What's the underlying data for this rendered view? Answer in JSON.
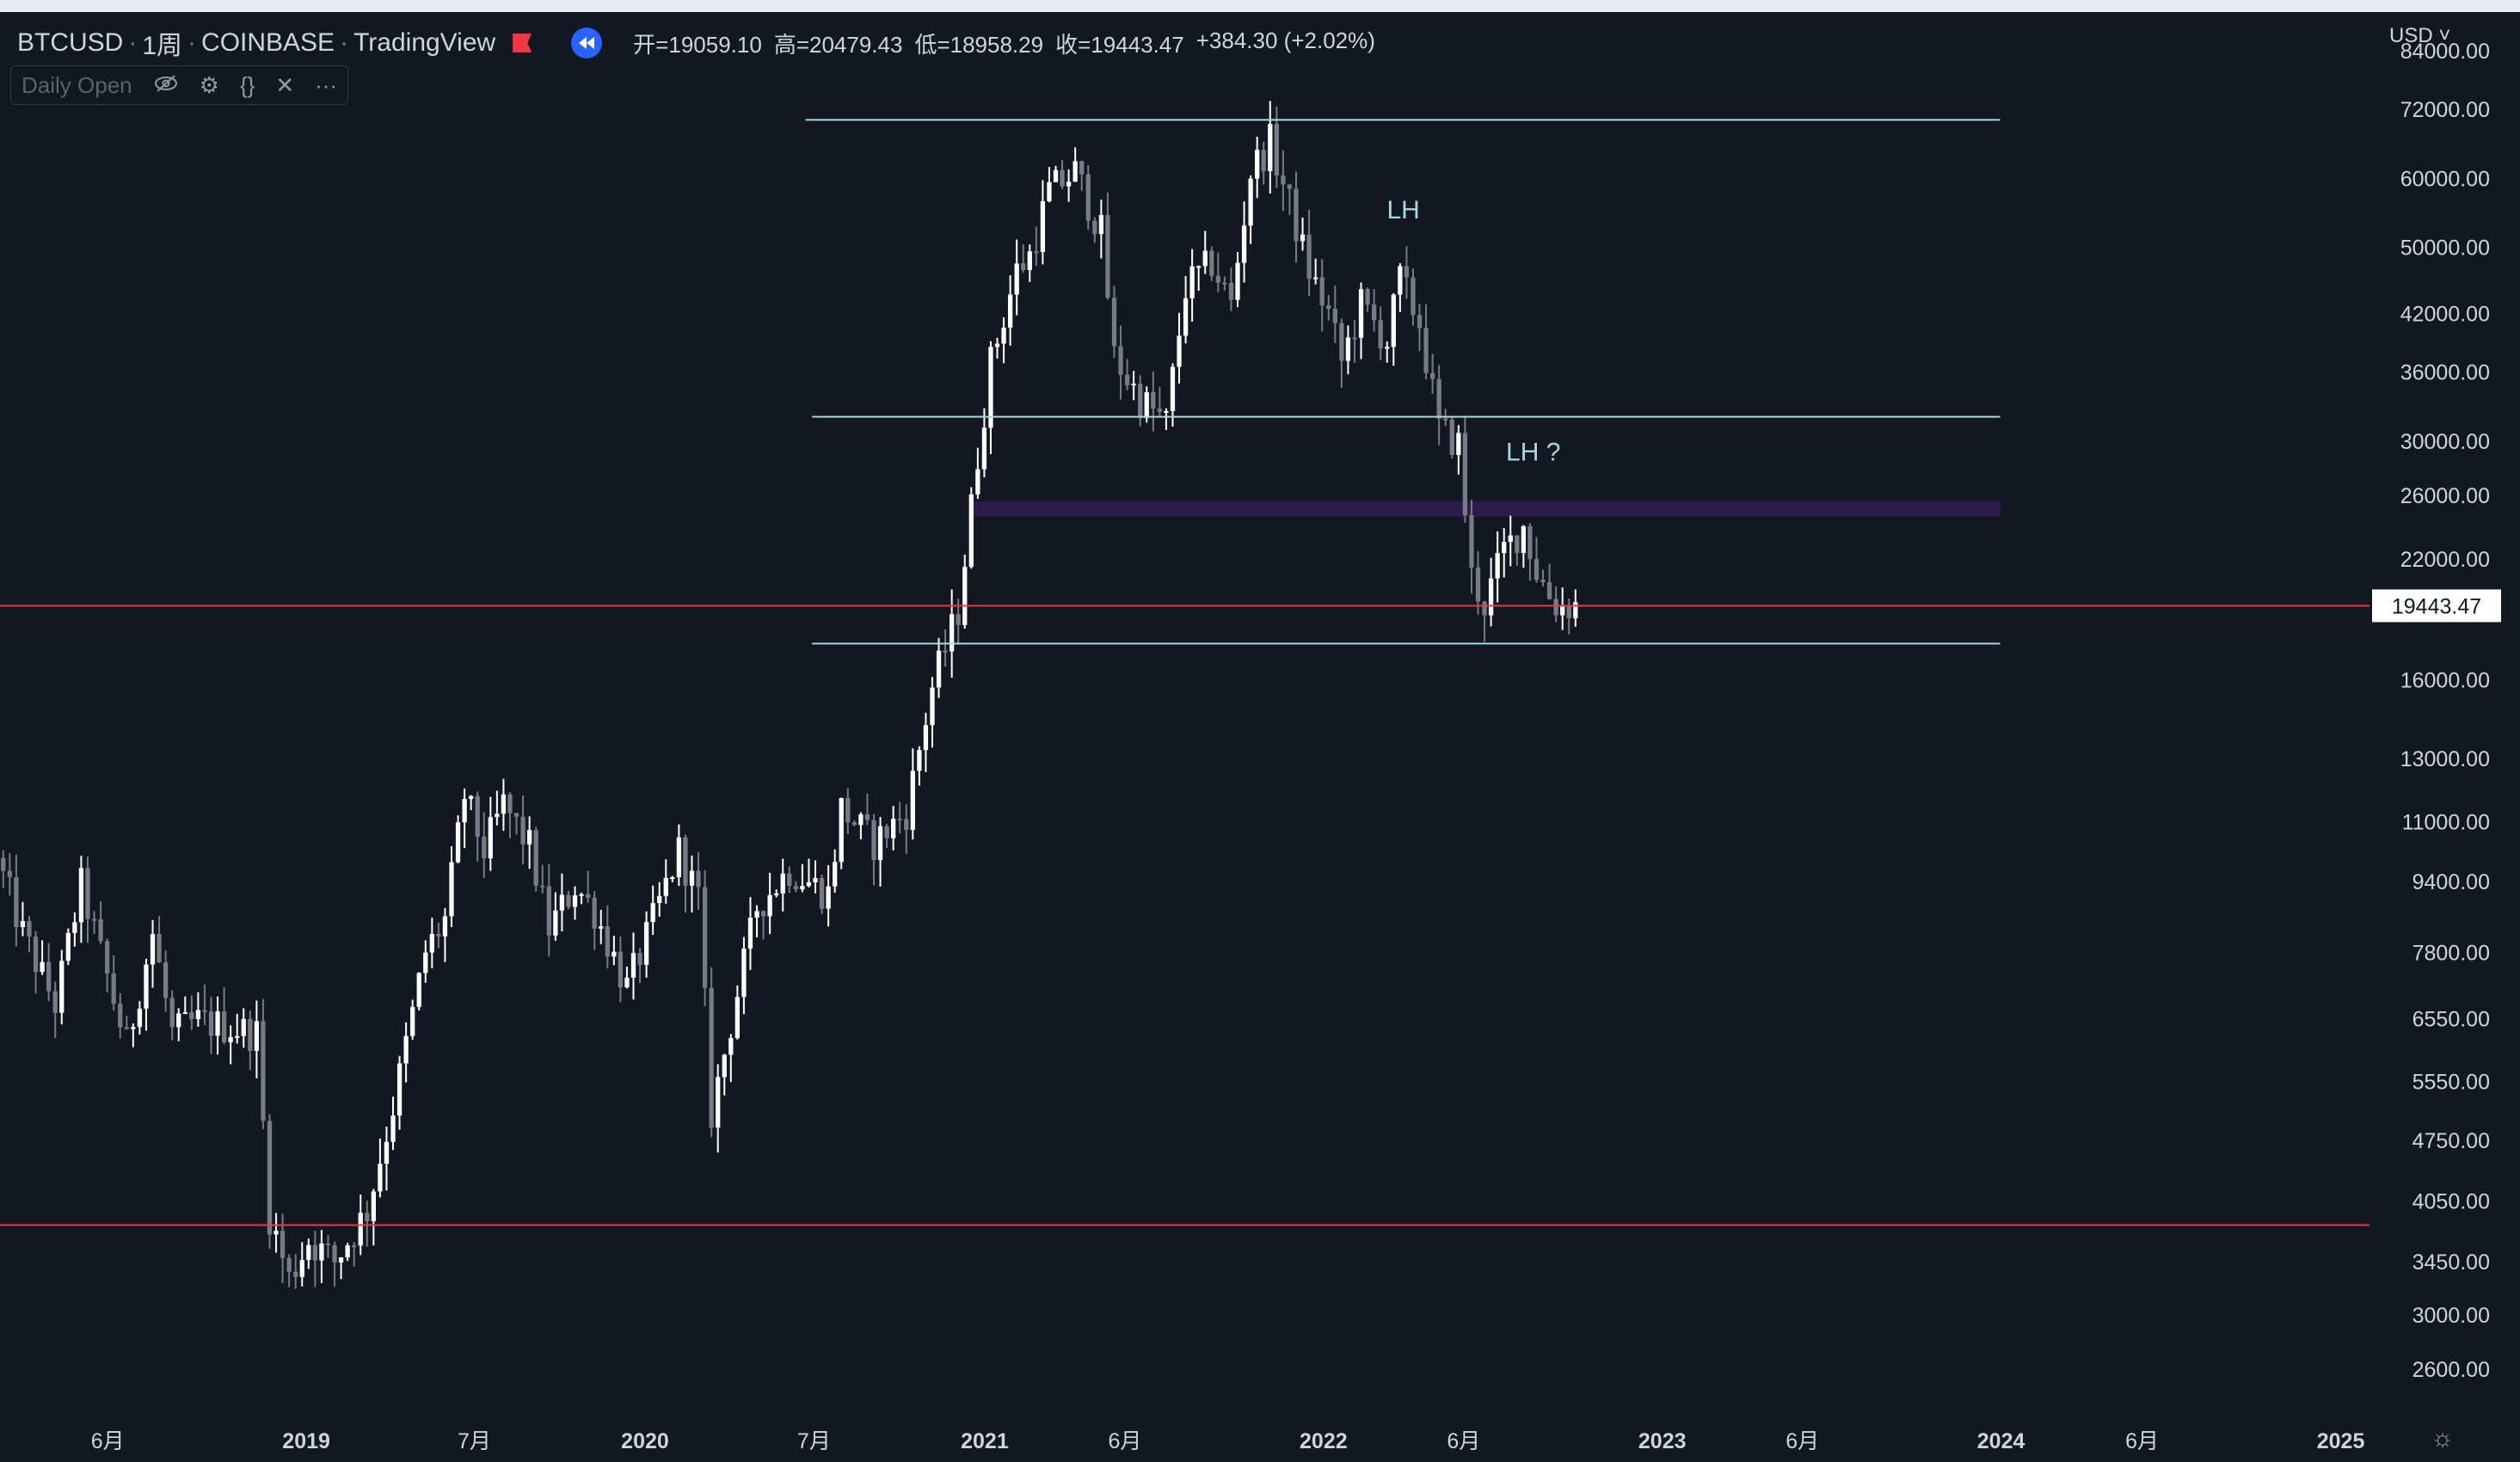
{
  "header": {
    "symbol": "BTCUSD",
    "interval": "1周",
    "exchange": "COINBASE",
    "source": "TradingView",
    "ohlc": {
      "open": "开=19059.10",
      "high": "高=20479.43",
      "low": "低=18958.29",
      "close": "收=19443.47",
      "change": "+384.30 (+2.02%)"
    }
  },
  "indicator": {
    "label": "Daily Open"
  },
  "price_axis": {
    "currency": "USD"
  },
  "colors": {
    "background": "#131722",
    "candle_up": "#ffffff",
    "candle_down": "#787b86",
    "level_line": "#a8d8e0",
    "red_line": "#f23645",
    "zone": "#2d1b4e"
  },
  "chart_data": {
    "type": "candlestick",
    "scale": "log",
    "ylim": [
      2300,
      93000
    ],
    "xlim": [
      "2018-02-05",
      "2025-02-01"
    ],
    "y_ticks": [
      84000,
      72000,
      60000,
      50000,
      42000,
      36000,
      30000,
      26000,
      22000,
      16000,
      13000,
      11000,
      9400,
      7800,
      6550,
      5550,
      4750,
      4050,
      3450,
      3000,
      2600
    ],
    "y_tick_labels": [
      "84000.00",
      "72000.00",
      "60000.00",
      "50000.00",
      "42000.00",
      "36000.00",
      "30000.00",
      "26000.00",
      "22000.00",
      "16000.00",
      "13000.00",
      "11000.00",
      "9400.00",
      "7800.00",
      "6550.00",
      "5550.00",
      "4750.00",
      "4050.00",
      "3450.00",
      "3000.00",
      "2600.00"
    ],
    "x_ticks": [
      {
        "date": "2018-06-01",
        "label": "6月",
        "bold": false
      },
      {
        "date": "2019-01-01",
        "label": "2019",
        "bold": true
      },
      {
        "date": "2019-07-01",
        "label": "7月",
        "bold": false
      },
      {
        "date": "2020-01-01",
        "label": "2020",
        "bold": true
      },
      {
        "date": "2020-07-01",
        "label": "7月",
        "bold": false
      },
      {
        "date": "2021-01-01",
        "label": "2021",
        "bold": true
      },
      {
        "date": "2021-06-01",
        "label": "6月",
        "bold": false
      },
      {
        "date": "2022-01-01",
        "label": "2022",
        "bold": true
      },
      {
        "date": "2022-06-01",
        "label": "6月",
        "bold": false
      },
      {
        "date": "2023-01-01",
        "label": "2023",
        "bold": true
      },
      {
        "date": "2023-06-01",
        "label": "6月",
        "bold": false
      },
      {
        "date": "2024-01-01",
        "label": "2024",
        "bold": true
      },
      {
        "date": "2024-06-01",
        "label": "6月",
        "bold": false
      },
      {
        "date": "2025-01-01",
        "label": "2025",
        "bold": true
      }
    ],
    "price_path": [
      [
        "2018-02-05",
        10000
      ],
      [
        "2018-03-05",
        8200
      ],
      [
        "2018-04-09",
        6800
      ],
      [
        "2018-05-07",
        9300
      ],
      [
        "2018-06-25",
        6100
      ],
      [
        "2018-07-23",
        8200
      ],
      [
        "2018-08-13",
        6300
      ],
      [
        "2018-09-10",
        6500
      ],
      [
        "2018-10-15",
        6400
      ],
      [
        "2018-11-12",
        6300
      ],
      [
        "2018-11-26",
        3900
      ],
      [
        "2018-12-17",
        3300
      ],
      [
        "2019-01-07",
        3650
      ],
      [
        "2019-02-04",
        3450
      ],
      [
        "2019-03-11",
        3950
      ],
      [
        "2019-04-08",
        5200
      ],
      [
        "2019-05-13",
        7800
      ],
      [
        "2019-06-03",
        8500
      ],
      [
        "2019-06-24",
        11800
      ],
      [
        "2019-07-15",
        10200
      ],
      [
        "2019-08-05",
        11500
      ],
      [
        "2019-09-02",
        10300
      ],
      [
        "2019-09-23",
        8300
      ],
      [
        "2019-10-21",
        9300
      ],
      [
        "2019-11-11",
        8700
      ],
      [
        "2019-12-16",
        7100
      ],
      [
        "2020-01-06",
        8100
      ],
      [
        "2020-02-10",
        10200
      ],
      [
        "2020-03-02",
        9000
      ],
      [
        "2020-03-16",
        5100
      ],
      [
        "2020-04-13",
        7000
      ],
      [
        "2020-05-04",
        8800
      ],
      [
        "2020-06-08",
        9700
      ],
      [
        "2020-07-20",
        9100
      ],
      [
        "2020-08-03",
        11400
      ],
      [
        "2020-09-07",
        10400
      ],
      [
        "2020-10-12",
        11300
      ],
      [
        "2020-11-09",
        15700
      ],
      [
        "2020-12-07",
        19200
      ],
      [
        "2020-12-28",
        28900
      ],
      [
        "2021-01-11",
        37000
      ],
      [
        "2021-02-08",
        47000
      ],
      [
        "2021-02-22",
        49000
      ],
      [
        "2021-03-15",
        58000
      ],
      [
        "2021-04-12",
        61000
      ],
      [
        "2021-05-10",
        52000
      ],
      [
        "2021-05-24",
        37500
      ],
      [
        "2021-06-21",
        33500
      ],
      [
        "2021-07-19",
        31500
      ],
      [
        "2021-08-09",
        45000
      ],
      [
        "2021-09-06",
        48000
      ],
      [
        "2021-09-27",
        43000
      ],
      [
        "2021-10-18",
        61000
      ],
      [
        "2021-11-08",
        66000
      ],
      [
        "2021-11-29",
        56000
      ],
      [
        "2021-12-20",
        47000
      ],
      [
        "2022-01-10",
        42000
      ],
      [
        "2022-01-24",
        37000
      ],
      [
        "2022-02-14",
        43000
      ],
      [
        "2022-03-14",
        39000
      ],
      [
        "2022-03-28",
        46000
      ],
      [
        "2022-04-18",
        41000
      ],
      [
        "2022-05-09",
        31000
      ],
      [
        "2022-05-30",
        29800
      ],
      [
        "2022-06-13",
        21000
      ],
      [
        "2022-06-27",
        19500
      ],
      [
        "2022-07-18",
        22500
      ],
      [
        "2022-08-08",
        24000
      ],
      [
        "2022-08-22",
        21300
      ],
      [
        "2022-09-05",
        20000
      ],
      [
        "2022-09-12",
        19500
      ],
      [
        "2022-09-26",
        19443
      ]
    ],
    "horizontal_lines": [
      {
        "name": "resistance-top",
        "price": 70000,
        "from": "2020-06-22",
        "to": "2023-12-31",
        "color": "#a8d8e0"
      },
      {
        "name": "support-mid",
        "price": 32000,
        "from": "2020-06-29",
        "to": "2023-12-31",
        "color": "#a8d8e0"
      },
      {
        "name": "support-low",
        "price": 17600,
        "from": "2020-06-29",
        "to": "2023-12-31",
        "color": "#a8d8e0"
      },
      {
        "name": "current-price-line",
        "price": 19443.47,
        "from": "2018-02-05",
        "to": "2025-02-01",
        "color": "#f23645"
      },
      {
        "name": "low-red-line",
        "price": 3800,
        "from": "2018-02-05",
        "to": "2025-02-01",
        "color": "#f23645"
      }
    ],
    "zones": [
      {
        "name": "resistance-zone",
        "price_low": 24600,
        "price_high": 25600,
        "from": "2020-12-15",
        "to": "2023-12-31",
        "color": "#2d1b4e"
      }
    ],
    "annotations": [
      {
        "text": "LH",
        "date": "2022-03-28",
        "price": 54000
      },
      {
        "text": "LH ?",
        "date": "2022-08-15",
        "price": 28500
      }
    ],
    "current_price": {
      "value": 19443.47,
      "label": "19443.47"
    }
  }
}
